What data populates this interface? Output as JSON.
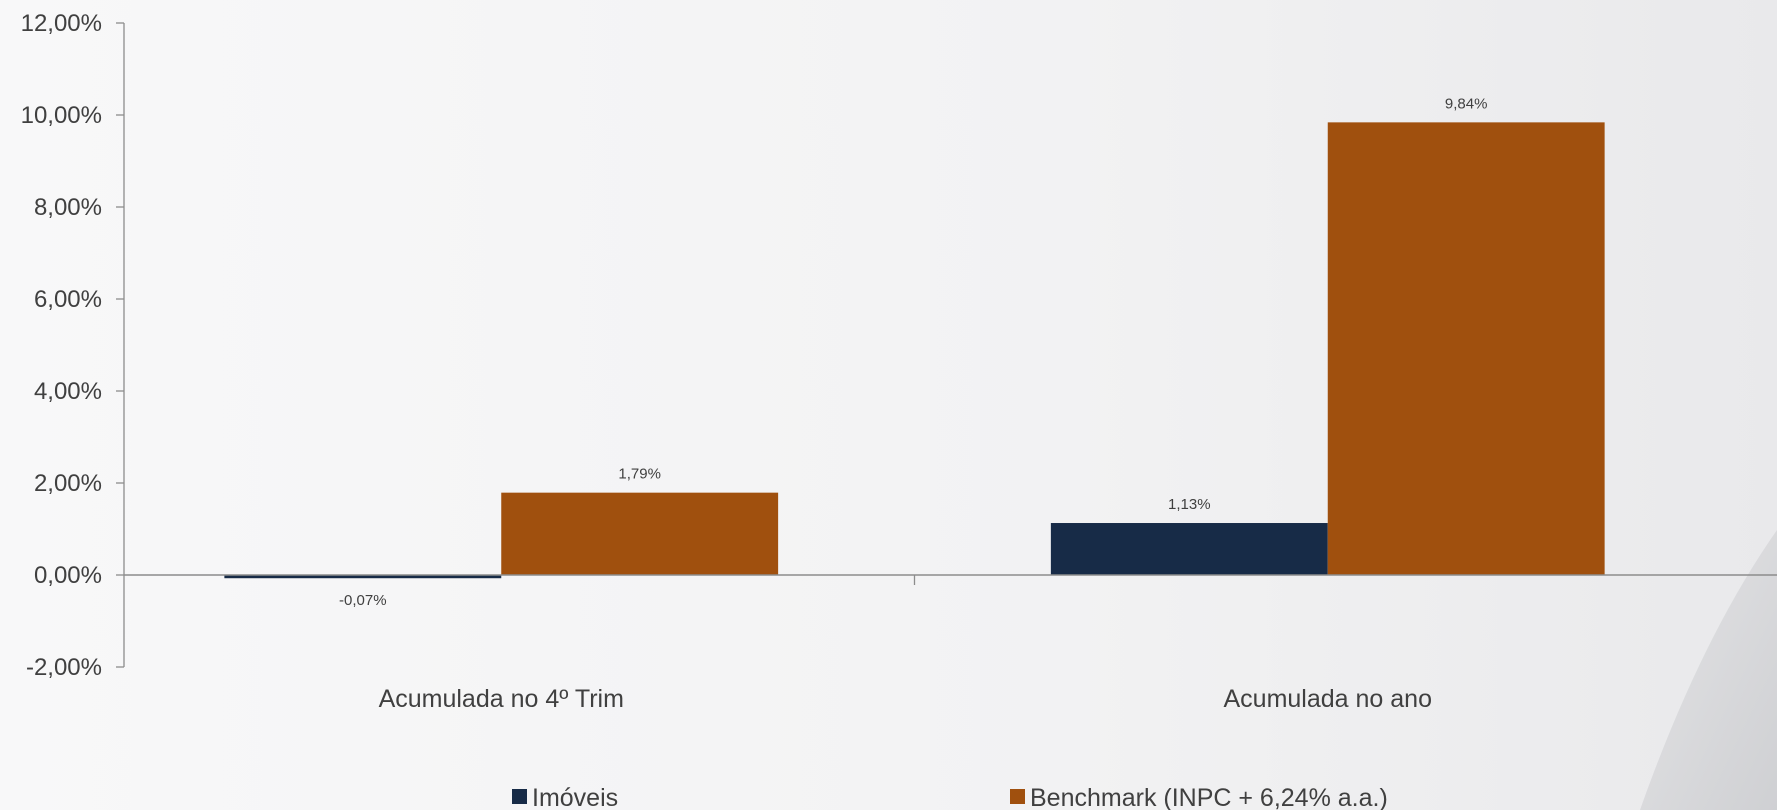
{
  "chart_data": {
    "type": "bar",
    "categories": [
      "Acumulada no 4º Trim",
      "Acumulada no ano"
    ],
    "series": [
      {
        "name": "Imóveis",
        "values": [
          -0.07,
          1.13
        ],
        "color": "#172b47",
        "labels": [
          "-0,07%",
          "1,13%"
        ]
      },
      {
        "name": "Benchmark (INPC + 6,24% a.a.)",
        "values": [
          1.79,
          9.84
        ],
        "color": "#a0500e",
        "labels": [
          "1,79%",
          "9,84%"
        ]
      }
    ],
    "ylim": [
      -2,
      12
    ],
    "yticks": [
      -2,
      0,
      2,
      4,
      6,
      8,
      10,
      12
    ],
    "ytick_labels": [
      "-2,00%",
      "0,00%",
      "2,00%",
      "4,00%",
      "6,00%",
      "8,00%",
      "10,00%",
      "12,00%"
    ],
    "title": "",
    "xlabel": "",
    "ylabel": "",
    "legend_position": "bottom",
    "grid": false
  }
}
